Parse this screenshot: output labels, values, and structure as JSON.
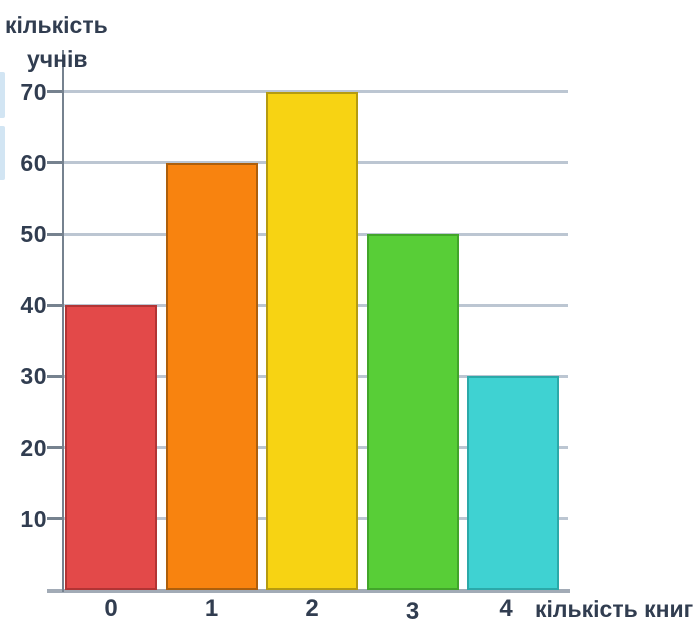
{
  "chart_data": {
    "type": "bar",
    "title": "",
    "categories": [
      "0",
      "1",
      "2",
      "3",
      "4"
    ],
    "values": [
      40,
      60,
      70,
      50,
      30
    ],
    "bar_colors": [
      "#e34949",
      "#f8830f",
      "#f7d313",
      "#58ce37",
      "#3fd2d2"
    ],
    "bar_border_colors": [
      "#b23434",
      "#ad5f0c",
      "#b59b10",
      "#42a52a",
      "#2ba9a9"
    ],
    "xlabel": "кількість книг",
    "ylabel_line1": "кількість",
    "ylabel_line2": "учнів",
    "y_ticks": [
      10,
      20,
      30,
      40,
      50,
      60,
      70
    ],
    "ylim": [
      0,
      75
    ],
    "grid": true,
    "legend": false,
    "palette": {
      "text": "#313d50",
      "gridline": "#bcc6d2",
      "axis": "#76828f",
      "bottom_axis": "#a2abb6",
      "background": "#ffffff",
      "edge_fragment": "#d2e5f3"
    }
  }
}
